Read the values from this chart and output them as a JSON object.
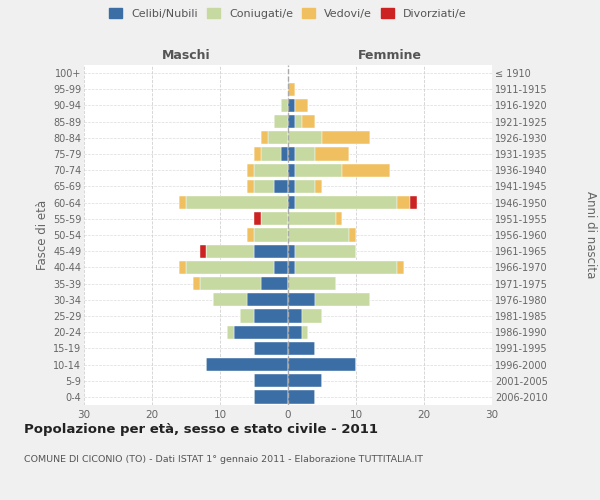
{
  "age_groups": [
    "0-4",
    "5-9",
    "10-14",
    "15-19",
    "20-24",
    "25-29",
    "30-34",
    "35-39",
    "40-44",
    "45-49",
    "50-54",
    "55-59",
    "60-64",
    "65-69",
    "70-74",
    "75-79",
    "80-84",
    "85-89",
    "90-94",
    "95-99",
    "100+"
  ],
  "birth_years": [
    "2006-2010",
    "2001-2005",
    "1996-2000",
    "1991-1995",
    "1986-1990",
    "1981-1985",
    "1976-1980",
    "1971-1975",
    "1966-1970",
    "1961-1965",
    "1956-1960",
    "1951-1955",
    "1946-1950",
    "1941-1945",
    "1936-1940",
    "1931-1935",
    "1926-1930",
    "1921-1925",
    "1916-1920",
    "1911-1915",
    "≤ 1910"
  ],
  "male_celibi": [
    5,
    5,
    12,
    5,
    8,
    5,
    6,
    4,
    2,
    5,
    0,
    0,
    0,
    2,
    0,
    1,
    0,
    0,
    0,
    0,
    0
  ],
  "male_coniugati": [
    0,
    0,
    0,
    0,
    1,
    2,
    5,
    9,
    13,
    7,
    5,
    4,
    15,
    3,
    5,
    3,
    3,
    2,
    1,
    0,
    0
  ],
  "male_vedovi": [
    0,
    0,
    0,
    0,
    0,
    0,
    0,
    1,
    1,
    0,
    1,
    0,
    1,
    1,
    1,
    1,
    1,
    0,
    0,
    0,
    0
  ],
  "male_divorziati": [
    0,
    0,
    0,
    0,
    0,
    0,
    0,
    0,
    0,
    1,
    0,
    1,
    0,
    0,
    0,
    0,
    0,
    0,
    0,
    0,
    0
  ],
  "female_celibi": [
    4,
    5,
    10,
    4,
    2,
    2,
    4,
    0,
    1,
    1,
    0,
    0,
    1,
    1,
    1,
    1,
    0,
    1,
    1,
    0,
    0
  ],
  "female_coniugati": [
    0,
    0,
    0,
    0,
    1,
    3,
    8,
    7,
    15,
    9,
    9,
    7,
    15,
    3,
    7,
    3,
    5,
    1,
    0,
    0,
    0
  ],
  "female_vedovi": [
    0,
    0,
    0,
    0,
    0,
    0,
    0,
    0,
    1,
    0,
    1,
    1,
    2,
    1,
    7,
    5,
    7,
    2,
    2,
    1,
    0
  ],
  "female_divorziati": [
    0,
    0,
    0,
    0,
    0,
    0,
    0,
    0,
    0,
    0,
    0,
    0,
    1,
    0,
    0,
    0,
    0,
    0,
    0,
    0,
    0
  ],
  "colors": {
    "celibi": "#3a6ea5",
    "coniugati": "#c5d9a0",
    "vedovi": "#f0c060",
    "divorziati": "#cc2222"
  },
  "title": "Popolazione per età, sesso e stato civile - 2011",
  "subtitle": "COMUNE DI CICONIO (TO) - Dati ISTAT 1° gennaio 2011 - Elaborazione TUTTITALIA.IT",
  "xlabel_left": "Maschi",
  "xlabel_right": "Femmine",
  "ylabel_left": "Fasce di età",
  "ylabel_right": "Anni di nascita",
  "xlim": 30,
  "background_color": "#f0f0f0",
  "plot_background": "#ffffff",
  "grid_color": "#cccccc"
}
